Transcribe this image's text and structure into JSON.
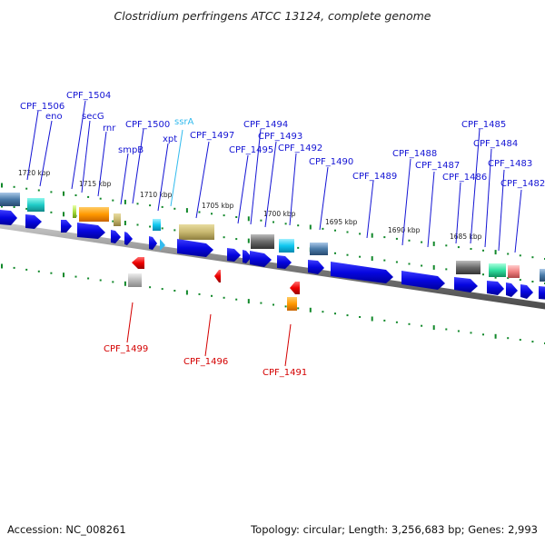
{
  "title": "Clostridium perfringens ATCC 13124, complete genome",
  "footer": {
    "accession": "Accession: NC_008261",
    "topology": "Topology: circular; Length: 3,256,683 bp; Genes: 2,993"
  },
  "colors": {
    "forward_label": "#1414d4",
    "reverse_label": "#d40000",
    "rna_label": "#33bbee",
    "tick": "#11882a",
    "gene_arrow": "#1010e8",
    "backbone": "#888888"
  },
  "kbp_labels": [
    "1720 kbp",
    "1715 kbp",
    "1710 kbp",
    "1705 kbp",
    "1700 kbp",
    "1695 kbp",
    "1690 kbp",
    "1685 kbp"
  ],
  "forward_labels": [
    "CPF_1506",
    "eno",
    "CPF_1504",
    "secG",
    "rnr",
    "smpB",
    "CPF_1500",
    "ssrA",
    "xpt",
    "CPF_1497",
    "CPF_1495",
    "CPF_1494",
    "CPF_1493",
    "CPF_1492",
    "CPF_1490",
    "CPF_1489",
    "CPF_1488",
    "CPF_1487",
    "CPF_1486",
    "CPF_1485",
    "CPF_1484",
    "CPF_1483",
    "CPF_1482"
  ],
  "reverse_labels": [
    "CPF_1499",
    "CPF_1496",
    "CPF_1491"
  ]
}
